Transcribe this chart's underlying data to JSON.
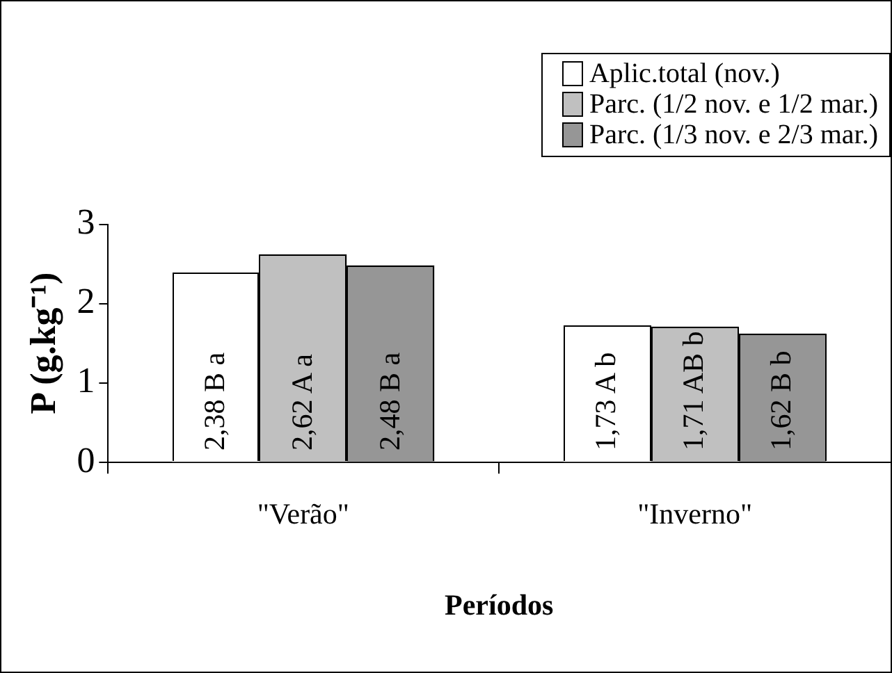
{
  "chart_data": {
    "type": "bar",
    "ylabel": "P (g.kg⁻¹)",
    "xlabel": "Períodos",
    "categories": [
      "\"Verão\"",
      "\"Inverno\""
    ],
    "series": [
      {
        "name": "Aplic.total (nov.)",
        "color": "#ffffff",
        "values": [
          2.38,
          1.73
        ],
        "value_labels": [
          "2,38 B a",
          "1,73 A b"
        ]
      },
      {
        "name": "Parc. (1/2 nov. e 1/2 mar.)",
        "color": "#c0c0c0",
        "values": [
          2.62,
          1.71
        ],
        "value_labels": [
          "2,62 A a",
          "1,71 AB b"
        ]
      },
      {
        "name": "Parc. (1/3 nov. e 2/3 mar.)",
        "color": "#969696",
        "values": [
          2.48,
          1.62
        ],
        "value_labels": [
          "2,48 B a",
          "1,62 B b"
        ]
      }
    ],
    "ylim": [
      0,
      3
    ],
    "yticks": [
      0,
      1,
      2,
      3
    ],
    "grid": false,
    "legend": "top right"
  }
}
